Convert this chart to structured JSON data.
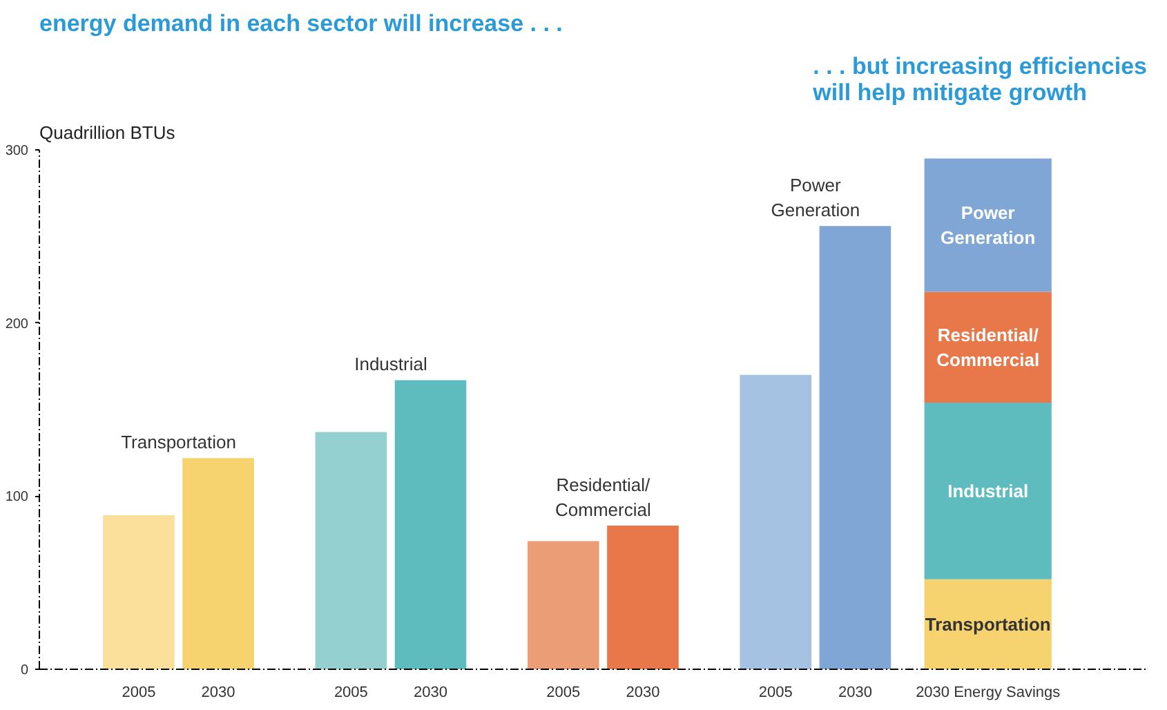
{
  "chart_data": {
    "type": "bar",
    "title": "energy demand in each sector will increase . . .",
    "annotations": [
      ". . . but increasing efficiencies\nwill help mitigate growth"
    ],
    "ylabel": "Quadrillion BTUs",
    "categories": [
      "2005",
      "2030",
      "2005",
      "2030",
      "2005",
      "2030",
      "2005",
      "2030",
      "2030 Energy Savings"
    ],
    "stacked": true,
    "ylim": [
      0,
      300
    ],
    "yticks": [
      0,
      100,
      200,
      300
    ],
    "grid": false,
    "legend": false,
    "series": [
      {
        "name": "Transportation",
        "colors": [
          "#fbe09c",
          "#f6d36e",
          null,
          null,
          null,
          null,
          null,
          null,
          "#f6d36e"
        ],
        "values": [
          89,
          122,
          null,
          null,
          null,
          null,
          null,
          null,
          52
        ]
      },
      {
        "name": "Industrial",
        "colors": [
          null,
          null,
          "#94d0cf",
          "#5ebcbf",
          null,
          null,
          null,
          null,
          "#5ebcbf"
        ],
        "values": [
          null,
          null,
          137,
          167,
          null,
          null,
          null,
          null,
          102
        ]
      },
      {
        "name": "Residential/\nCommercial",
        "colors": [
          null,
          null,
          null,
          null,
          "#eb9d76",
          "#e8774a",
          null,
          null,
          "#e8774a"
        ],
        "values": [
          null,
          null,
          null,
          null,
          74,
          83,
          null,
          null,
          64
        ]
      },
      {
        "name": "Power\nGeneration",
        "colors": [
          null,
          null,
          null,
          null,
          null,
          null,
          "#a6c2e2",
          "#7fa6d4",
          "#7fa6d4"
        ],
        "values": [
          null,
          null,
          null,
          null,
          null,
          null,
          170,
          256,
          77
        ]
      }
    ]
  }
}
